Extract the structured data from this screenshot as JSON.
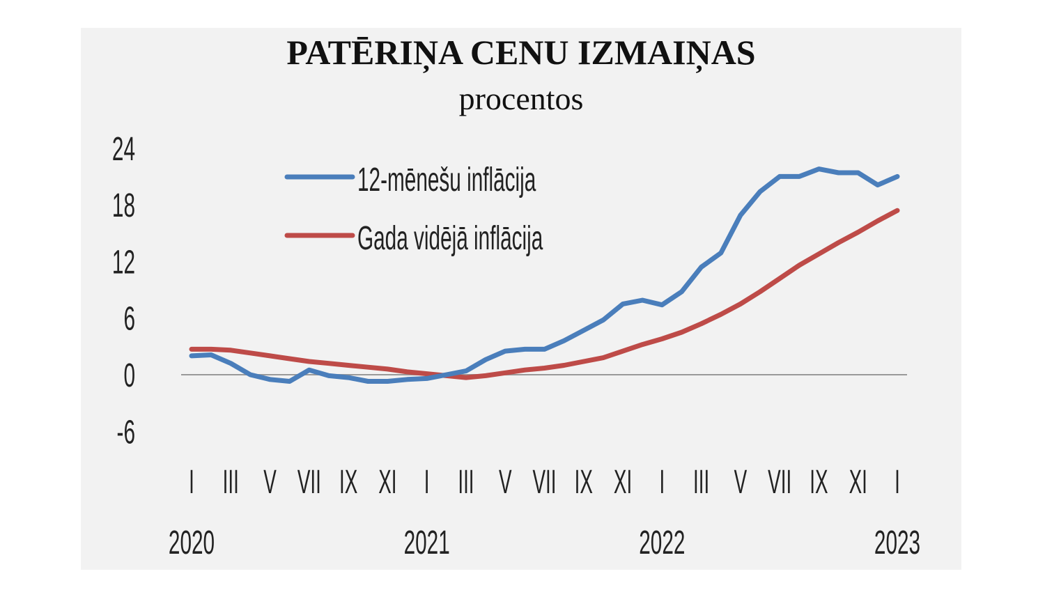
{
  "chart_data": {
    "type": "line",
    "title": "PATĒRIŅA CENU IZMAIŅAS",
    "subtitle": "procentos",
    "yticks": [
      24,
      18,
      12,
      6,
      0,
      -6
    ],
    "ylim": [
      -6,
      24
    ],
    "xtick_labels": [
      "I",
      "III",
      "V",
      "VII",
      "IX",
      "XI",
      "I",
      "III",
      "V",
      "VII",
      "IX",
      "XI",
      "I",
      "III",
      "V",
      "VII",
      "IX",
      "XI",
      "I"
    ],
    "year_labels": [
      "2020",
      "2021",
      "2022",
      "2023"
    ],
    "x": [
      "2020-01",
      "2020-02",
      "2020-03",
      "2020-04",
      "2020-05",
      "2020-06",
      "2020-07",
      "2020-08",
      "2020-09",
      "2020-10",
      "2020-11",
      "2020-12",
      "2021-01",
      "2021-02",
      "2021-03",
      "2021-04",
      "2021-05",
      "2021-06",
      "2021-07",
      "2021-08",
      "2021-09",
      "2021-10",
      "2021-11",
      "2021-12",
      "2022-01",
      "2022-02",
      "2022-03",
      "2022-04",
      "2022-05",
      "2022-06",
      "2022-07",
      "2022-08",
      "2022-09",
      "2022-10",
      "2022-11",
      "2022-12",
      "2023-01"
    ],
    "legend_position": "top-left",
    "grid": false,
    "series": [
      {
        "name": "12-mēnešu inflācija",
        "color": "#4a7ebb",
        "values": [
          2.0,
          2.1,
          1.2,
          0.0,
          -0.5,
          -0.7,
          0.5,
          -0.1,
          -0.3,
          -0.7,
          -0.7,
          -0.5,
          -0.4,
          0.0,
          0.4,
          1.6,
          2.5,
          2.7,
          2.7,
          3.6,
          4.7,
          5.8,
          7.5,
          7.9,
          7.4,
          8.8,
          11.4,
          12.9,
          16.9,
          19.4,
          21.0,
          21.0,
          21.8,
          21.4,
          21.4,
          20.1,
          21.0
        ]
      },
      {
        "name": "Gada vidējā inflācija",
        "color": "#be4b48",
        "values": [
          2.7,
          2.7,
          2.6,
          2.3,
          2.0,
          1.7,
          1.4,
          1.2,
          1.0,
          0.8,
          0.6,
          0.3,
          0.1,
          -0.1,
          -0.3,
          -0.1,
          0.2,
          0.5,
          0.7,
          1.0,
          1.4,
          1.8,
          2.5,
          3.2,
          3.8,
          4.5,
          5.4,
          6.4,
          7.5,
          8.8,
          10.2,
          11.6,
          12.8,
          14.0,
          15.1,
          16.3,
          17.4
        ]
      }
    ]
  }
}
